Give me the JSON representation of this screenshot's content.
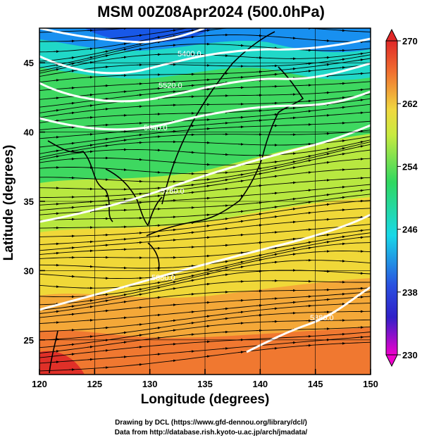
{
  "title": "MSM 00Z08Apr2024 (500.0hPa)",
  "xlabel": "Longitude (degrees)",
  "ylabel": "Latitude  (degrees)",
  "credits": [
    "Drawing by DCL (https://www.gfd-dennou.org/library/dcl/)",
    "Data from http://database.rish.kyoto-u.ac.jp/arch/jmadata/"
  ],
  "map": {
    "lon_range": [
      120,
      150
    ],
    "lat_range": [
      22.5,
      47.5
    ],
    "lon_ticks": [
      "120",
      "125",
      "130",
      "135",
      "140",
      "145",
      "150"
    ],
    "lat_ticks": [
      "25",
      "30",
      "35",
      "40",
      "45"
    ]
  },
  "colorbar": {
    "range": [
      230,
      270
    ],
    "ticks": [
      "230",
      "238",
      "246",
      "254",
      "262",
      "270"
    ],
    "colors": [
      "#ee00cc",
      "#2a2ad0",
      "#18d8e8",
      "#30d860",
      "#f0e840",
      "#f07030",
      "#e02828"
    ]
  },
  "contour_labels": [
    "5400.0",
    "5520.0",
    "5640.0",
    "5760.0",
    "5880.0",
    "5880.0"
  ]
}
